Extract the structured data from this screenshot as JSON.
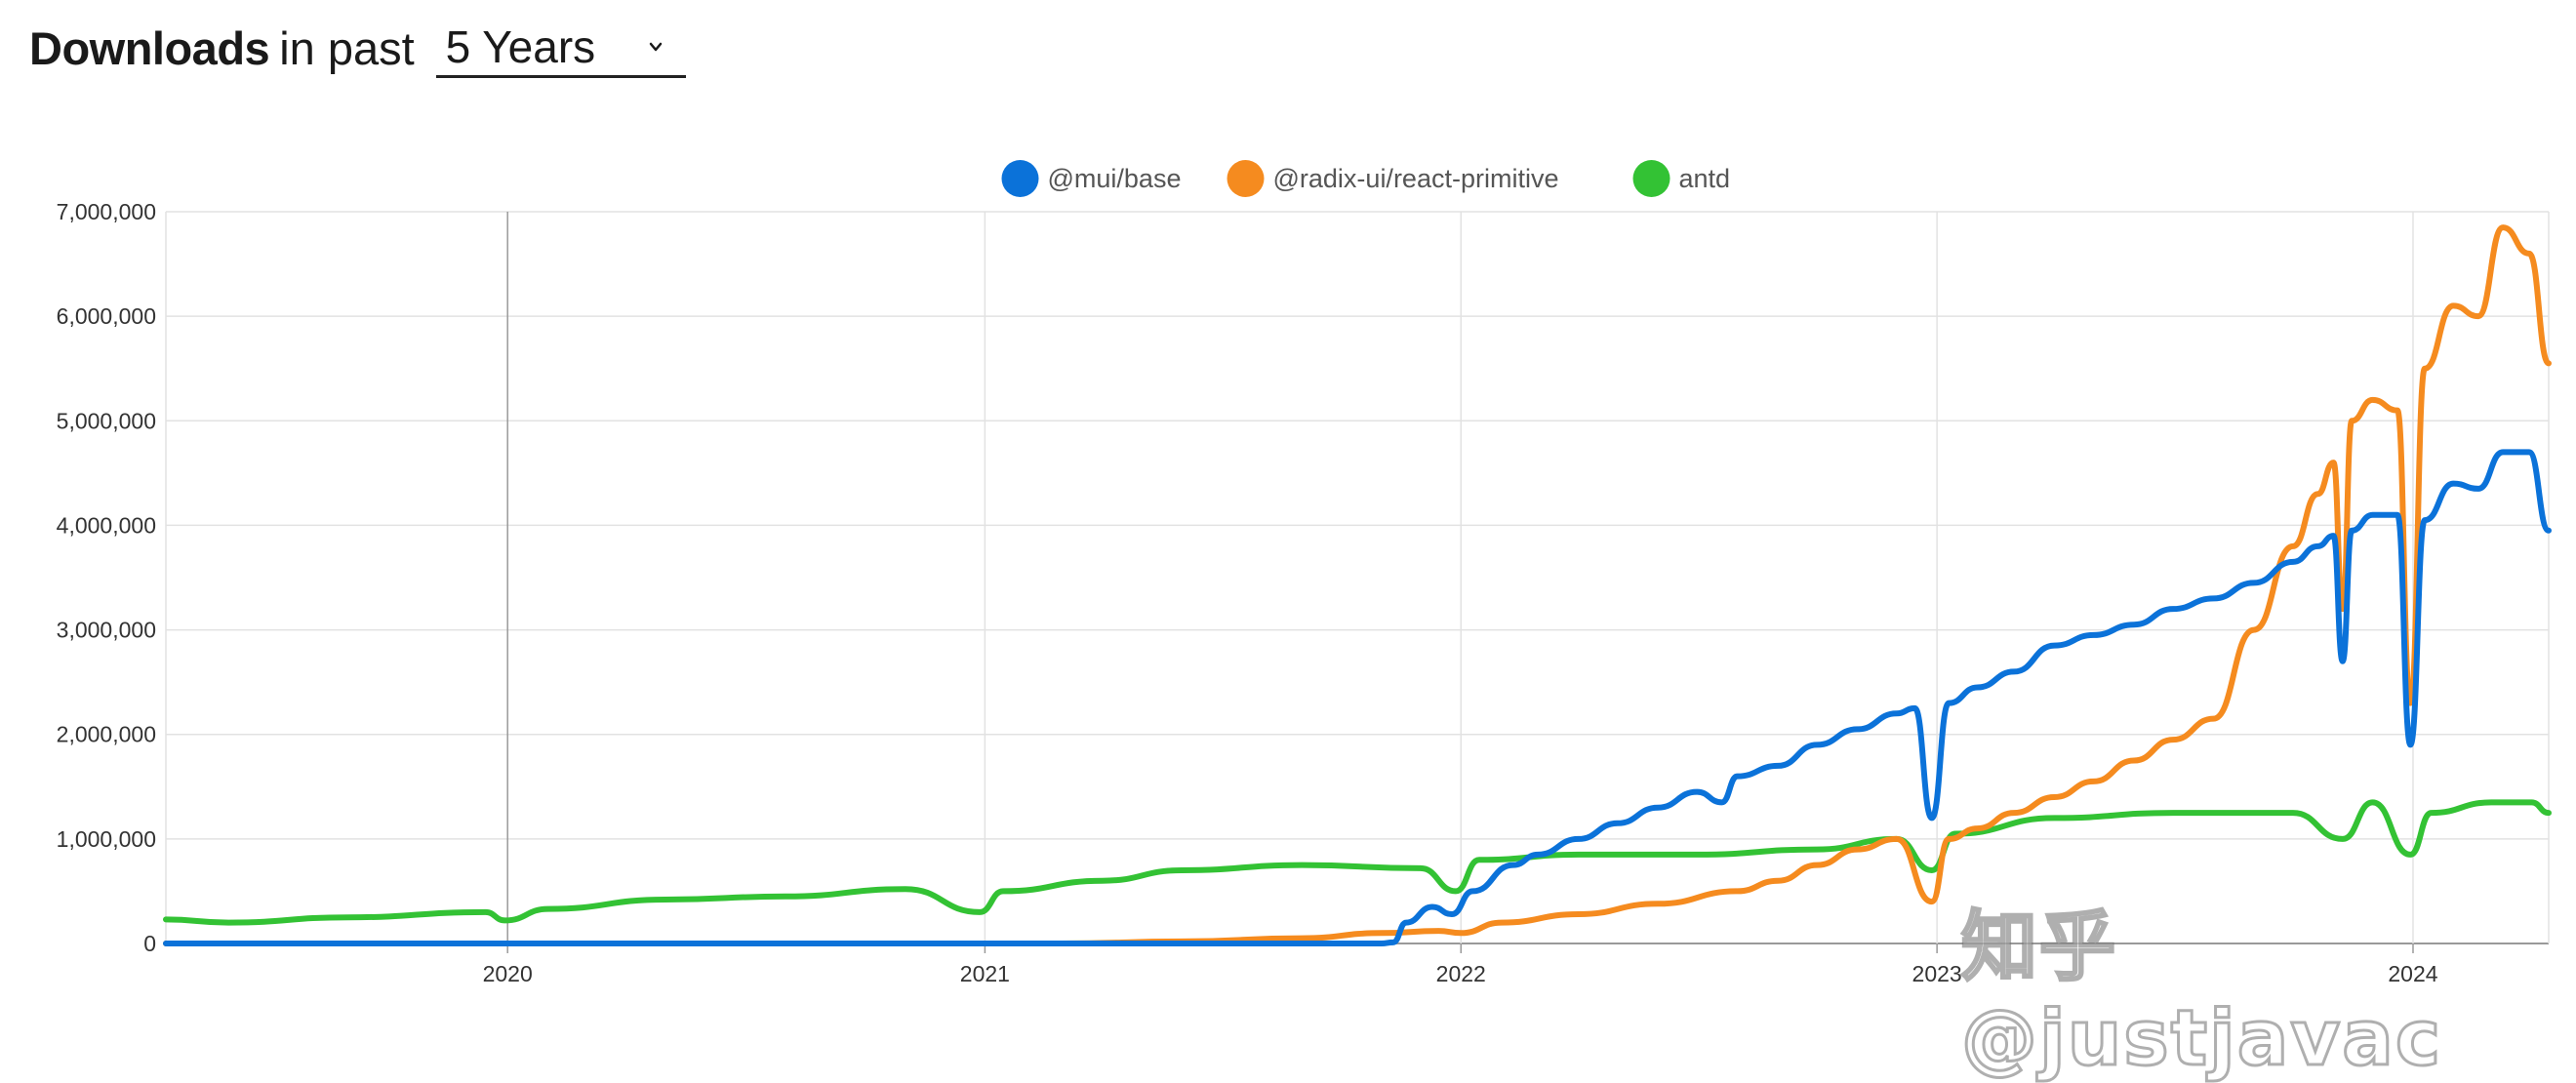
{
  "header": {
    "title_strong": "Downloads",
    "title_light": "in past",
    "period": "5 Years"
  },
  "watermark": "知乎 @justjavac",
  "chart_data": {
    "type": "line",
    "x_start": "2019-04-14",
    "x_end": "2024-04-14",
    "x_ticks": [
      {
        "label": "2020",
        "date": "2020-01-01"
      },
      {
        "label": "2021",
        "date": "2021-01-01"
      },
      {
        "label": "2022",
        "date": "2022-01-01"
      },
      {
        "label": "2023",
        "date": "2023-01-01"
      },
      {
        "label": "2024",
        "date": "2024-01-01"
      }
    ],
    "y_ticks": [
      0,
      1000000,
      2000000,
      3000000,
      4000000,
      5000000,
      6000000,
      7000000
    ],
    "y_tick_labels": [
      "0",
      "1,000,000",
      "2,000,000",
      "3,000,000",
      "4,000,000",
      "5,000,000",
      "6,000,000",
      "7,000,000"
    ],
    "ylim": [
      0,
      7000000
    ],
    "grid": true,
    "legend_position": "top-center",
    "series": [
      {
        "name": "@mui/base",
        "color": "#0b72d9",
        "points": [
          [
            "2019-04-14",
            0
          ],
          [
            "2021-11-01",
            0
          ],
          [
            "2021-11-10",
            10000
          ],
          [
            "2021-11-20",
            200000
          ],
          [
            "2021-12-10",
            350000
          ],
          [
            "2021-12-25",
            280000
          ],
          [
            "2022-01-10",
            500000
          ],
          [
            "2022-02-10",
            750000
          ],
          [
            "2022-03-01",
            850000
          ],
          [
            "2022-04-01",
            1000000
          ],
          [
            "2022-05-01",
            1150000
          ],
          [
            "2022-06-01",
            1300000
          ],
          [
            "2022-07-01",
            1450000
          ],
          [
            "2022-07-20",
            1350000
          ],
          [
            "2022-08-01",
            1600000
          ],
          [
            "2022-09-01",
            1700000
          ],
          [
            "2022-10-01",
            1900000
          ],
          [
            "2022-11-01",
            2050000
          ],
          [
            "2022-12-01",
            2200000
          ],
          [
            "2022-12-15",
            2250000
          ],
          [
            "2022-12-28",
            1200000
          ],
          [
            "2023-01-10",
            2300000
          ],
          [
            "2023-02-01",
            2450000
          ],
          [
            "2023-03-01",
            2600000
          ],
          [
            "2023-04-01",
            2850000
          ],
          [
            "2023-05-01",
            2950000
          ],
          [
            "2023-06-01",
            3050000
          ],
          [
            "2023-07-01",
            3200000
          ],
          [
            "2023-08-01",
            3300000
          ],
          [
            "2023-09-01",
            3450000
          ],
          [
            "2023-10-01",
            3650000
          ],
          [
            "2023-10-20",
            3800000
          ],
          [
            "2023-11-01",
            3900000
          ],
          [
            "2023-11-08",
            2700000
          ],
          [
            "2023-11-15",
            3950000
          ],
          [
            "2023-12-01",
            4100000
          ],
          [
            "2023-12-20",
            4100000
          ],
          [
            "2023-12-30",
            1900000
          ],
          [
            "2024-01-10",
            4050000
          ],
          [
            "2024-02-01",
            4400000
          ],
          [
            "2024-02-20",
            4350000
          ],
          [
            "2024-03-10",
            4700000
          ],
          [
            "2024-03-30",
            4700000
          ],
          [
            "2024-04-14",
            3950000
          ]
        ]
      },
      {
        "name": "@radix-ui/react-primitive",
        "color": "#f58b1f",
        "points": [
          [
            "2019-04-14",
            0
          ],
          [
            "2021-03-01",
            0
          ],
          [
            "2021-06-01",
            20000
          ],
          [
            "2021-09-01",
            50000
          ],
          [
            "2021-11-01",
            100000
          ],
          [
            "2021-12-15",
            120000
          ],
          [
            "2022-01-01",
            100000
          ],
          [
            "2022-02-01",
            200000
          ],
          [
            "2022-04-01",
            280000
          ],
          [
            "2022-06-01",
            380000
          ],
          [
            "2022-08-01",
            500000
          ],
          [
            "2022-09-01",
            600000
          ],
          [
            "2022-10-01",
            750000
          ],
          [
            "2022-11-01",
            900000
          ],
          [
            "2022-12-01",
            1000000
          ],
          [
            "2022-12-28",
            400000
          ],
          [
            "2023-01-10",
            1000000
          ],
          [
            "2023-02-01",
            1100000
          ],
          [
            "2023-03-01",
            1250000
          ],
          [
            "2023-04-01",
            1400000
          ],
          [
            "2023-05-01",
            1550000
          ],
          [
            "2023-06-01",
            1750000
          ],
          [
            "2023-07-01",
            1950000
          ],
          [
            "2023-08-01",
            2150000
          ],
          [
            "2023-09-01",
            3000000
          ],
          [
            "2023-10-01",
            3800000
          ],
          [
            "2023-10-20",
            4300000
          ],
          [
            "2023-11-01",
            4600000
          ],
          [
            "2023-11-08",
            3200000
          ],
          [
            "2023-11-15",
            5000000
          ],
          [
            "2023-12-01",
            5200000
          ],
          [
            "2023-12-20",
            5100000
          ],
          [
            "2023-12-30",
            2300000
          ],
          [
            "2024-01-10",
            5500000
          ],
          [
            "2024-02-01",
            6100000
          ],
          [
            "2024-02-20",
            6000000
          ],
          [
            "2024-03-10",
            6850000
          ],
          [
            "2024-03-30",
            6600000
          ],
          [
            "2024-04-14",
            5550000
          ]
        ]
      },
      {
        "name": "antd",
        "color": "#33c234",
        "points": [
          [
            "2019-04-14",
            230000
          ],
          [
            "2019-06-01",
            200000
          ],
          [
            "2019-09-01",
            250000
          ],
          [
            "2019-12-15",
            300000
          ],
          [
            "2019-12-30",
            220000
          ],
          [
            "2020-02-01",
            330000
          ],
          [
            "2020-05-01",
            420000
          ],
          [
            "2020-08-01",
            450000
          ],
          [
            "2020-11-01",
            520000
          ],
          [
            "2020-12-28",
            300000
          ],
          [
            "2021-01-15",
            500000
          ],
          [
            "2021-04-01",
            600000
          ],
          [
            "2021-06-01",
            700000
          ],
          [
            "2021-09-01",
            750000
          ],
          [
            "2021-12-01",
            720000
          ],
          [
            "2021-12-28",
            500000
          ],
          [
            "2022-01-15",
            800000
          ],
          [
            "2022-04-01",
            850000
          ],
          [
            "2022-07-01",
            850000
          ],
          [
            "2022-10-01",
            900000
          ],
          [
            "2022-12-01",
            1000000
          ],
          [
            "2022-12-28",
            700000
          ],
          [
            "2023-01-15",
            1050000
          ],
          [
            "2023-04-01",
            1200000
          ],
          [
            "2023-07-01",
            1250000
          ],
          [
            "2023-10-01",
            1250000
          ],
          [
            "2023-11-08",
            1000000
          ],
          [
            "2023-12-01",
            1350000
          ],
          [
            "2023-12-30",
            850000
          ],
          [
            "2024-01-15",
            1250000
          ],
          [
            "2024-03-01",
            1350000
          ],
          [
            "2024-04-01",
            1350000
          ],
          [
            "2024-04-14",
            1250000
          ]
        ]
      }
    ]
  }
}
